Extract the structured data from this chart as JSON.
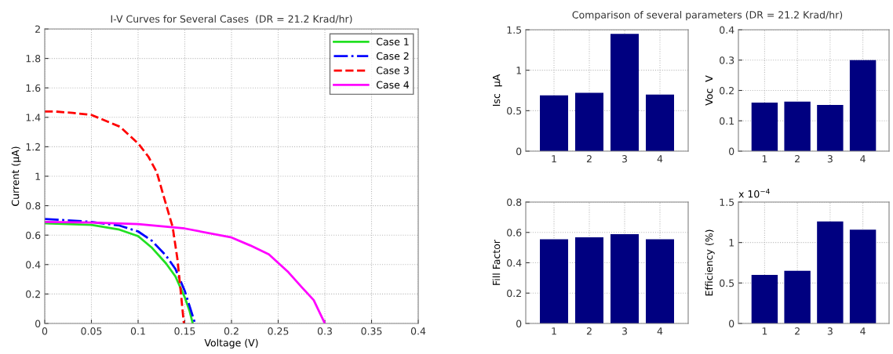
{
  "chart_data": [
    {
      "type": "line",
      "title": "I-V Curves for Several Cases  (DR = 21.2 Krad/hr)",
      "xlabel": "Voltage (V)",
      "ylabel": "Current (µA)",
      "xlim": [
        0,
        0.4
      ],
      "ylim": [
        0,
        2
      ],
      "xticks": [
        0,
        0.05,
        0.1,
        0.15,
        0.2,
        0.25,
        0.3,
        0.35,
        0.4
      ],
      "yticks": [
        0,
        0.2,
        0.4,
        0.6,
        0.8,
        1,
        1.2,
        1.4,
        1.6,
        1.8,
        2
      ],
      "grid": true,
      "legend": "top right",
      "marker": "none",
      "series": [
        {
          "name": "Case 1",
          "color": "#22e022",
          "line_style": "solid",
          "x": [
            0,
            0.05,
            0.08,
            0.1,
            0.115,
            0.13,
            0.14,
            0.15,
            0.155,
            0.1585
          ],
          "values": [
            0.68,
            0.669,
            0.637,
            0.593,
            0.513,
            0.407,
            0.319,
            0.177,
            0.088,
            0
          ]
        },
        {
          "name": "Case 2",
          "color": "#0000ff",
          "line_style": "dashdot",
          "x": [
            0,
            0.05,
            0.08,
            0.1,
            0.115,
            0.13,
            0.14,
            0.15,
            0.155,
            0.161
          ],
          "values": [
            0.71,
            0.69,
            0.665,
            0.625,
            0.56,
            0.46,
            0.37,
            0.22,
            0.12,
            0
          ]
        },
        {
          "name": "Case 3",
          "color": "#ff0000",
          "line_style": "dashed",
          "x": [
            0,
            0.01,
            0.03,
            0.05,
            0.0807,
            0.1003,
            0.111,
            0.12,
            0.128,
            0.137,
            0.142,
            0.146,
            0.149
          ],
          "values": [
            1.44,
            1.44,
            1.43,
            1.416,
            1.336,
            1.221,
            1.133,
            1.027,
            0.85,
            0.655,
            0.442,
            0.195,
            0
          ]
        },
        {
          "name": "Case 4",
          "color": "#ff00ff",
          "line_style": "solid",
          "x": [
            0,
            0.05,
            0.1,
            0.15,
            0.2,
            0.22,
            0.24,
            0.26,
            0.275,
            0.288,
            0.3
          ],
          "values": [
            0.69,
            0.685,
            0.675,
            0.645,
            0.584,
            0.53,
            0.469,
            0.354,
            0.248,
            0.159,
            0
          ]
        }
      ]
    },
    {
      "type": "bar",
      "title": "Comparison of several parameters (DR = 21.2 Krad/hr)",
      "ylabel": "Isc  µA",
      "categories": [
        "1",
        "2",
        "3",
        "4"
      ],
      "values": [
        0.69,
        0.72,
        1.45,
        0.7
      ],
      "color": "#000080",
      "ylim": [
        0,
        1.5
      ],
      "yticks": [
        0,
        0.5,
        1,
        1.5
      ],
      "grid": true
    },
    {
      "type": "bar",
      "ylabel": "Voc  V",
      "categories": [
        "1",
        "2",
        "3",
        "4"
      ],
      "values": [
        0.16,
        0.163,
        0.152,
        0.3
      ],
      "color": "#000080",
      "ylim": [
        0,
        0.4
      ],
      "yticks": [
        0,
        0.1,
        0.2,
        0.3,
        0.4
      ],
      "grid": true
    },
    {
      "type": "bar",
      "ylabel": "Fill Factor",
      "categories": [
        "1",
        "2",
        "3",
        "4"
      ],
      "values": [
        0.555,
        0.568,
        0.588,
        0.555
      ],
      "color": "#000080",
      "ylim": [
        0,
        0.8
      ],
      "yticks": [
        0,
        0.2,
        0.4,
        0.6,
        0.8
      ],
      "grid": true
    },
    {
      "type": "bar",
      "ylabel": "Efficiency (%)",
      "categories": [
        "1",
        "2",
        "3",
        "4"
      ],
      "values": [
        0.6,
        0.65,
        1.26,
        1.16
      ],
      "color": "#000080",
      "ylim": [
        0,
        1.5
      ],
      "yticks": [
        0,
        0.5,
        1,
        1.5
      ],
      "grid": true,
      "annotations": [
        "x 10$^{−4}$"
      ]
    }
  ]
}
